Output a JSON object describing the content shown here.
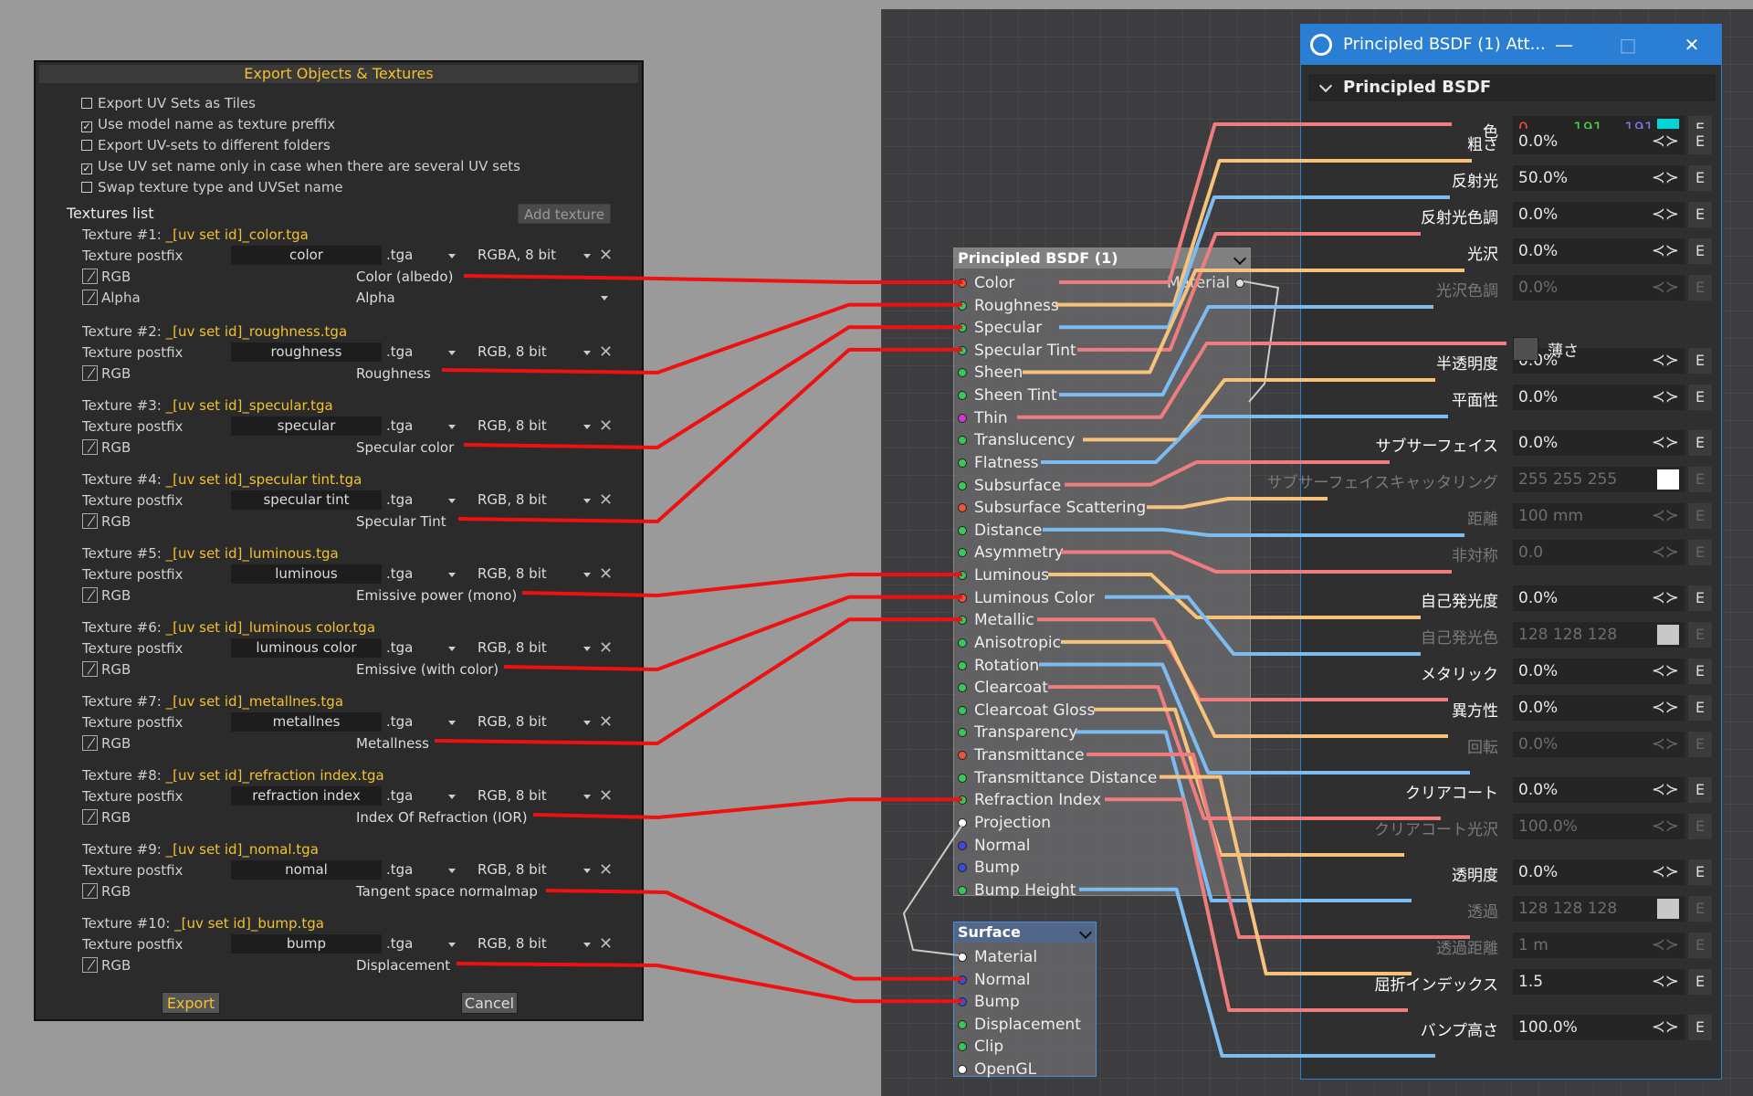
{
  "export_dialog": {
    "title": "Export Objects & Textures",
    "options": [
      {
        "label": "Export UV Sets as Tiles",
        "checked": false
      },
      {
        "label": "Use model name as texture preffix",
        "checked": true
      },
      {
        "label": "Export UV-sets to different folders",
        "checked": false
      },
      {
        "label": "Use UV set name only in case when there are several UV sets",
        "checked": true
      },
      {
        "label": "Swap texture type and UVSet name",
        "checked": false
      }
    ],
    "textures_list_label": "Textures list",
    "add_texture_label": "Add texture",
    "postfix_label": "Texture postfix",
    "textures": [
      {
        "title": "Texture #1: ",
        "file": "_[uv set id]_color.tga",
        "postfix": "color",
        "ext": ".tga",
        "format": "RGBA, 8 bit",
        "channels": [
          {
            "ch": "RGB",
            "map": "Color (albedo)"
          },
          {
            "ch": "Alpha",
            "map": "Alpha"
          }
        ]
      },
      {
        "title": "Texture #2: ",
        "file": "_[uv set id]_roughness.tga",
        "postfix": "roughness",
        "ext": ".tga",
        "format": "RGB, 8 bit",
        "channels": [
          {
            "ch": "RGB",
            "map": "Roughness"
          }
        ]
      },
      {
        "title": "Texture #3: ",
        "file": "_[uv set id]_specular.tga",
        "postfix": "specular",
        "ext": ".tga",
        "format": "RGB, 8 bit",
        "channels": [
          {
            "ch": "RGB",
            "map": "Specular color"
          }
        ]
      },
      {
        "title": "Texture #4: ",
        "file": "_[uv set id]_specular tint.tga",
        "postfix": "specular tint",
        "ext": ".tga",
        "format": "RGB, 8 bit",
        "channels": [
          {
            "ch": "RGB",
            "map": "Specular Tint"
          }
        ]
      },
      {
        "title": "Texture #5: ",
        "file": "_[uv set id]_luminous.tga",
        "postfix": "luminous",
        "ext": ".tga",
        "format": "RGB, 8 bit",
        "channels": [
          {
            "ch": "RGB",
            "map": "Emissive power (mono)"
          }
        ]
      },
      {
        "title": "Texture #6: ",
        "file": "_[uv set id]_luminous color.tga",
        "postfix": "luminous color",
        "ext": ".tga",
        "format": "RGB, 8 bit",
        "channels": [
          {
            "ch": "RGB",
            "map": "Emissive (with color)"
          }
        ]
      },
      {
        "title": "Texture #7: ",
        "file": "_[uv set id]_metallnes.tga",
        "postfix": "metallnes",
        "ext": ".tga",
        "format": "RGB, 8 bit",
        "channels": [
          {
            "ch": "RGB",
            "map": "Metallness"
          }
        ]
      },
      {
        "title": "Texture #8: ",
        "file": "_[uv set id]_refraction index.tga",
        "postfix": "refraction index",
        "ext": ".tga",
        "format": "RGB, 8 bit",
        "channels": [
          {
            "ch": "RGB",
            "map": "Index Of Refraction (IOR)"
          }
        ]
      },
      {
        "title": "Texture #9: ",
        "file": "_[uv set id]_nomal.tga",
        "postfix": "nomal",
        "ext": ".tga",
        "format": "RGB, 8 bit",
        "channels": [
          {
            "ch": "RGB",
            "map": "Tangent space normalmap"
          }
        ]
      },
      {
        "title": "Texture #10: ",
        "file": "_[uv set id]_bump.tga",
        "postfix": "bump",
        "ext": ".tga",
        "format": "RGB, 8 bit",
        "channels": [
          {
            "ch": "RGB",
            "map": "Displacement"
          }
        ]
      }
    ],
    "export_label": "Export",
    "cancel_label": "Cancel"
  },
  "bsdf_node": {
    "title": "Principled BSDF (1)",
    "output": "Material",
    "inputs": [
      {
        "name": "Color",
        "color": "#e8553a"
      },
      {
        "name": "Roughness",
        "color": "#38c75b"
      },
      {
        "name": "Specular",
        "color": "#38c75b"
      },
      {
        "name": "Specular Tint",
        "color": "#38c75b"
      },
      {
        "name": "Sheen",
        "color": "#38c75b"
      },
      {
        "name": "Sheen Tint",
        "color": "#38c75b"
      },
      {
        "name": "Thin",
        "color": "#d23ad6"
      },
      {
        "name": "Translucency",
        "color": "#38c75b"
      },
      {
        "name": "Flatness",
        "color": "#38c75b"
      },
      {
        "name": "Subsurface",
        "color": "#38c75b"
      },
      {
        "name": "Subsurface Scattering",
        "color": "#e8553a"
      },
      {
        "name": "Distance",
        "color": "#38c75b"
      },
      {
        "name": "Asymmetry",
        "color": "#38c75b"
      },
      {
        "name": "Luminous",
        "color": "#38c75b"
      },
      {
        "name": "Luminous Color",
        "color": "#e8553a"
      },
      {
        "name": "Metallic",
        "color": "#38c75b"
      },
      {
        "name": "Anisotropic",
        "color": "#38c75b"
      },
      {
        "name": "Rotation",
        "color": "#38c75b"
      },
      {
        "name": "Clearcoat",
        "color": "#38c75b"
      },
      {
        "name": "Clearcoat Gloss",
        "color": "#38c75b"
      },
      {
        "name": "Transparency",
        "color": "#38c75b"
      },
      {
        "name": "Transmittance",
        "color": "#e8553a"
      },
      {
        "name": "Transmittance Distance",
        "color": "#38c75b"
      },
      {
        "name": "Refraction Index",
        "color": "#38c75b"
      },
      {
        "name": "Projection",
        "color": "#ffffff"
      },
      {
        "name": "Normal",
        "color": "#3a4fd6"
      },
      {
        "name": "Bump",
        "color": "#3a4fd6"
      },
      {
        "name": "Bump Height",
        "color": "#38c75b"
      }
    ]
  },
  "surface_node": {
    "title": "Surface",
    "inputs": [
      {
        "name": "Material",
        "color": "#ffffff"
      },
      {
        "name": "Normal",
        "color": "#3a4fd6"
      },
      {
        "name": "Bump",
        "color": "#3a4fd6"
      },
      {
        "name": "Displacement",
        "color": "#38c75b"
      },
      {
        "name": "Clip",
        "color": "#38c75b"
      },
      {
        "name": "OpenGL",
        "color": "#ffffff"
      }
    ]
  },
  "attr_window": {
    "title": "Principled BSDF (1) Att...",
    "section": "Principled BSDF",
    "color_row": {
      "label": "色",
      "r": "0",
      "g": "191",
      "b": "191",
      "swatch": "#00d6d6"
    },
    "thin_label": "薄さ",
    "rows": [
      {
        "label": "粗さ",
        "value": "0.0%",
        "dim": false
      },
      {
        "label": "反射光",
        "value": "50.0%",
        "dim": false
      },
      {
        "label": "反射光色調",
        "value": "0.0%",
        "dim": false
      },
      {
        "label": "光沢",
        "value": "0.0%",
        "dim": false
      },
      {
        "label": "光沢色調",
        "value": "0.0%",
        "dim": true
      },
      {
        "label": "半透明度",
        "value": "0.0%",
        "dim": false
      },
      {
        "label": "平面性",
        "value": "0.0%",
        "dim": false
      },
      {
        "label": "サブサーフェイス",
        "value": "0.0%",
        "dim": false
      },
      {
        "label": "サブサーフェイスキャッタリング",
        "value": "255   255   255",
        "dim": true,
        "swatch": "#ffffff"
      },
      {
        "label": "距離",
        "value": "100 mm",
        "dim": true
      },
      {
        "label": "非対称",
        "value": "0.0",
        "dim": true
      },
      {
        "label": "自己発光度",
        "value": "0.0%",
        "dim": false
      },
      {
        "label": "自己発光色",
        "value": "128   128   128",
        "dim": true,
        "swatch": "#c8c8c8"
      },
      {
        "label": "メタリック",
        "value": "0.0%",
        "dim": false
      },
      {
        "label": "異方性",
        "value": "0.0%",
        "dim": false
      },
      {
        "label": "回転",
        "value": "0.0%",
        "dim": true
      },
      {
        "label": "クリアコート",
        "value": "0.0%",
        "dim": false
      },
      {
        "label": "クリアコート光沢",
        "value": "100.0%",
        "dim": true
      },
      {
        "label": "透明度",
        "value": "0.0%",
        "dim": false
      },
      {
        "label": "透過",
        "value": "128   128   128",
        "dim": true,
        "swatch": "#c8c8c8"
      },
      {
        "label": "透過距離",
        "value": "1 m",
        "dim": true
      },
      {
        "label": "屈折インデックス",
        "value": "1.5",
        "dim": false
      },
      {
        "label": "バンプ高さ",
        "value": "100.0%",
        "dim": false
      }
    ],
    "e_label": "E"
  },
  "colors": {
    "wire_red": "#ee1111",
    "wire_pink": "#f07d7d",
    "wire_orange": "#f7c27a",
    "wire_blue": "#7cbcf2",
    "accent_yellow": "#f2c22e",
    "title_blue": "#2a7fd4"
  }
}
